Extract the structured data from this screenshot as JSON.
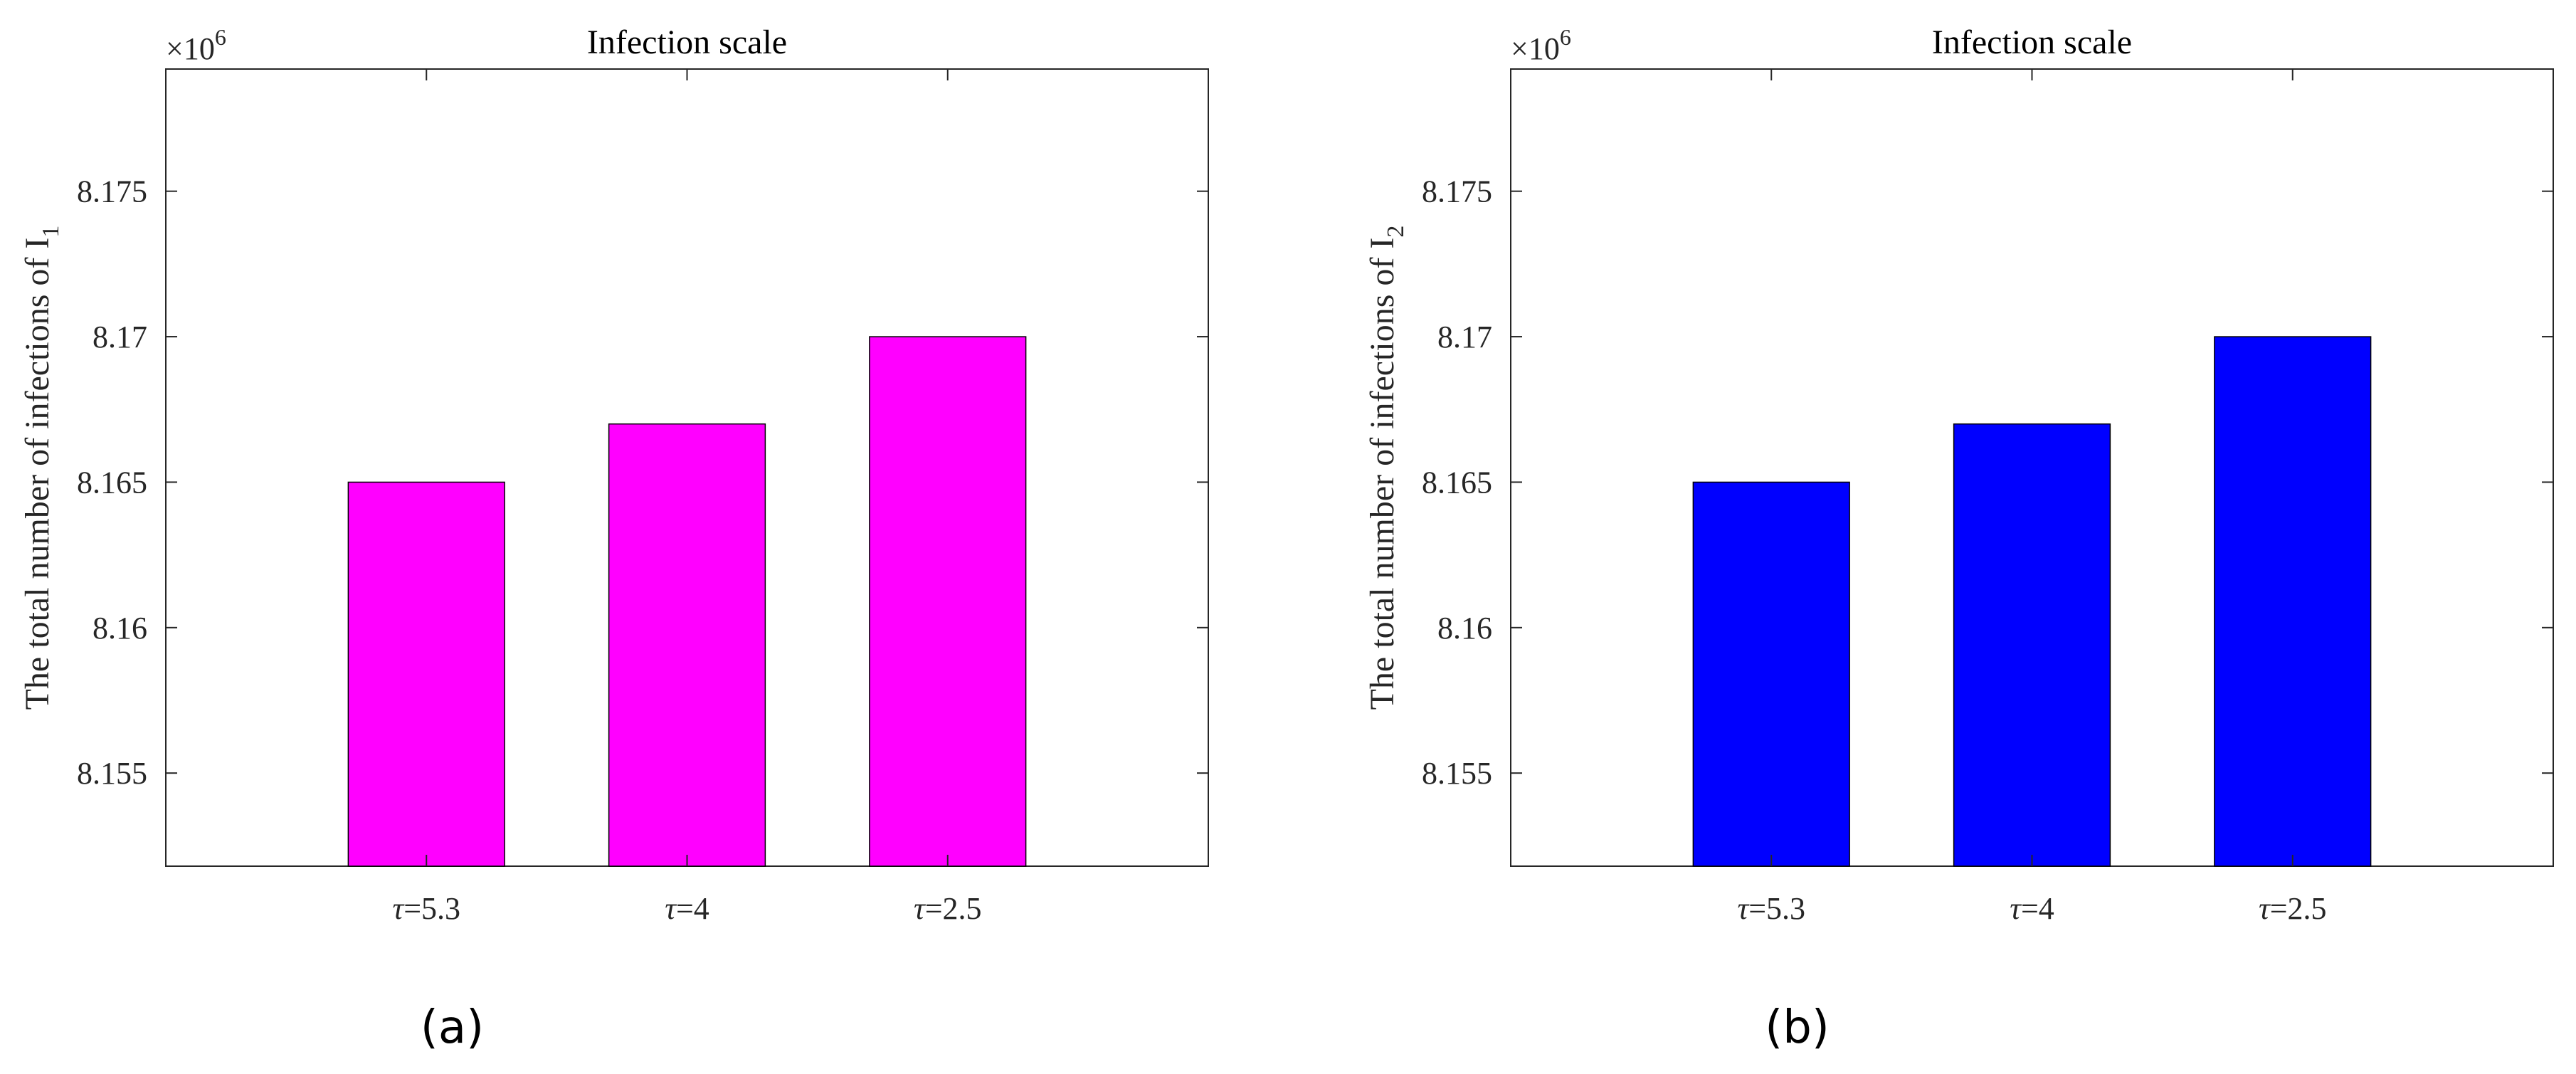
{
  "chart_data": [
    {
      "type": "bar",
      "title": "Infection scale",
      "ylabel": "The total number of infections of I",
      "ylabel_sub": "1",
      "y_multiplier": "×10",
      "y_multiplier_exp": "6",
      "categories": [
        {
          "symbol": "τ",
          "text": "=5.3"
        },
        {
          "symbol": "τ",
          "text": "=4"
        },
        {
          "symbol": "τ",
          "text": "=2.5"
        }
      ],
      "values": [
        8.165,
        8.167,
        8.17
      ],
      "ylim": [
        8.1518,
        8.1792
      ],
      "yticks": [
        "8.155",
        "8.16",
        "8.165",
        "8.17",
        "8.175"
      ],
      "ytick_values": [
        8.155,
        8.16,
        8.165,
        8.17,
        8.175
      ],
      "bar_color": "#FF00FF",
      "caption": "(a)",
      "grid": false
    },
    {
      "type": "bar",
      "title": "Infection scale",
      "ylabel": "The total number of infections of I",
      "ylabel_sub": "2",
      "y_multiplier": "×10",
      "y_multiplier_exp": "6",
      "categories": [
        {
          "symbol": "τ",
          "text": "=5.3"
        },
        {
          "symbol": "τ",
          "text": "=4"
        },
        {
          "symbol": "τ",
          "text": "=2.5"
        }
      ],
      "values": [
        8.165,
        8.167,
        8.17
      ],
      "ylim": [
        8.1518,
        8.1792
      ],
      "yticks": [
        "8.155",
        "8.16",
        "8.165",
        "8.17",
        "8.175"
      ],
      "ytick_values": [
        8.155,
        8.16,
        8.165,
        8.17,
        8.175
      ],
      "bar_color": "#0000FF",
      "caption": "(b)",
      "grid": false
    }
  ]
}
